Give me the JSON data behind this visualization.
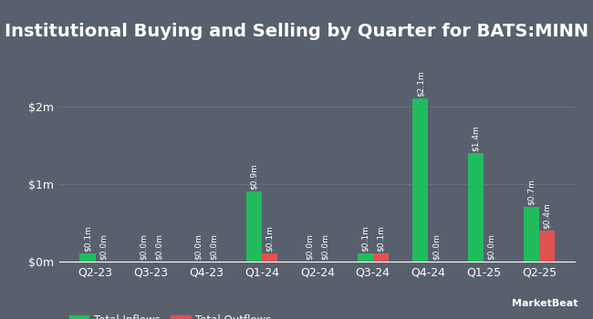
{
  "title": "Institutional Buying and Selling by Quarter for BATS:MINN",
  "quarters": [
    "Q2-23",
    "Q3-23",
    "Q4-23",
    "Q1-24",
    "Q2-24",
    "Q3-24",
    "Q4-24",
    "Q1-25",
    "Q2-25"
  ],
  "inflows": [
    0.1,
    0.0,
    0.0,
    0.9,
    0.0,
    0.1,
    2.1,
    1.4,
    0.7
  ],
  "outflows": [
    0.0,
    0.0,
    0.0,
    0.1,
    0.0,
    0.1,
    0.0,
    0.0,
    0.4
  ],
  "inflow_labels": [
    "$0.1m",
    "$0.0m",
    "$0.0m",
    "$0.9m",
    "$0.0m",
    "$0.1m",
    "$2.1m",
    "$1.4m",
    "$0.7m"
  ],
  "outflow_labels": [
    "$0.0m",
    "$0.0m",
    "$0.0m",
    "$0.1m",
    "$0.0m",
    "$0.1m",
    "$0.0m",
    "$0.0m",
    "$0.4m"
  ],
  "inflow_color": "#22bb5e",
  "outflow_color": "#e05252",
  "background_color": "#58606e",
  "text_color": "#ffffff",
  "grid_color": "#666f7e",
  "yticks": [
    0,
    1,
    2
  ],
  "ytick_labels": [
    "$0m",
    "$1m",
    "$2m"
  ],
  "ylim": [
    0,
    2.55
  ],
  "bar_width": 0.28,
  "title_fontsize": 14,
  "label_fontsize": 6.5,
  "tick_fontsize": 9,
  "legend_fontsize": 8.5
}
